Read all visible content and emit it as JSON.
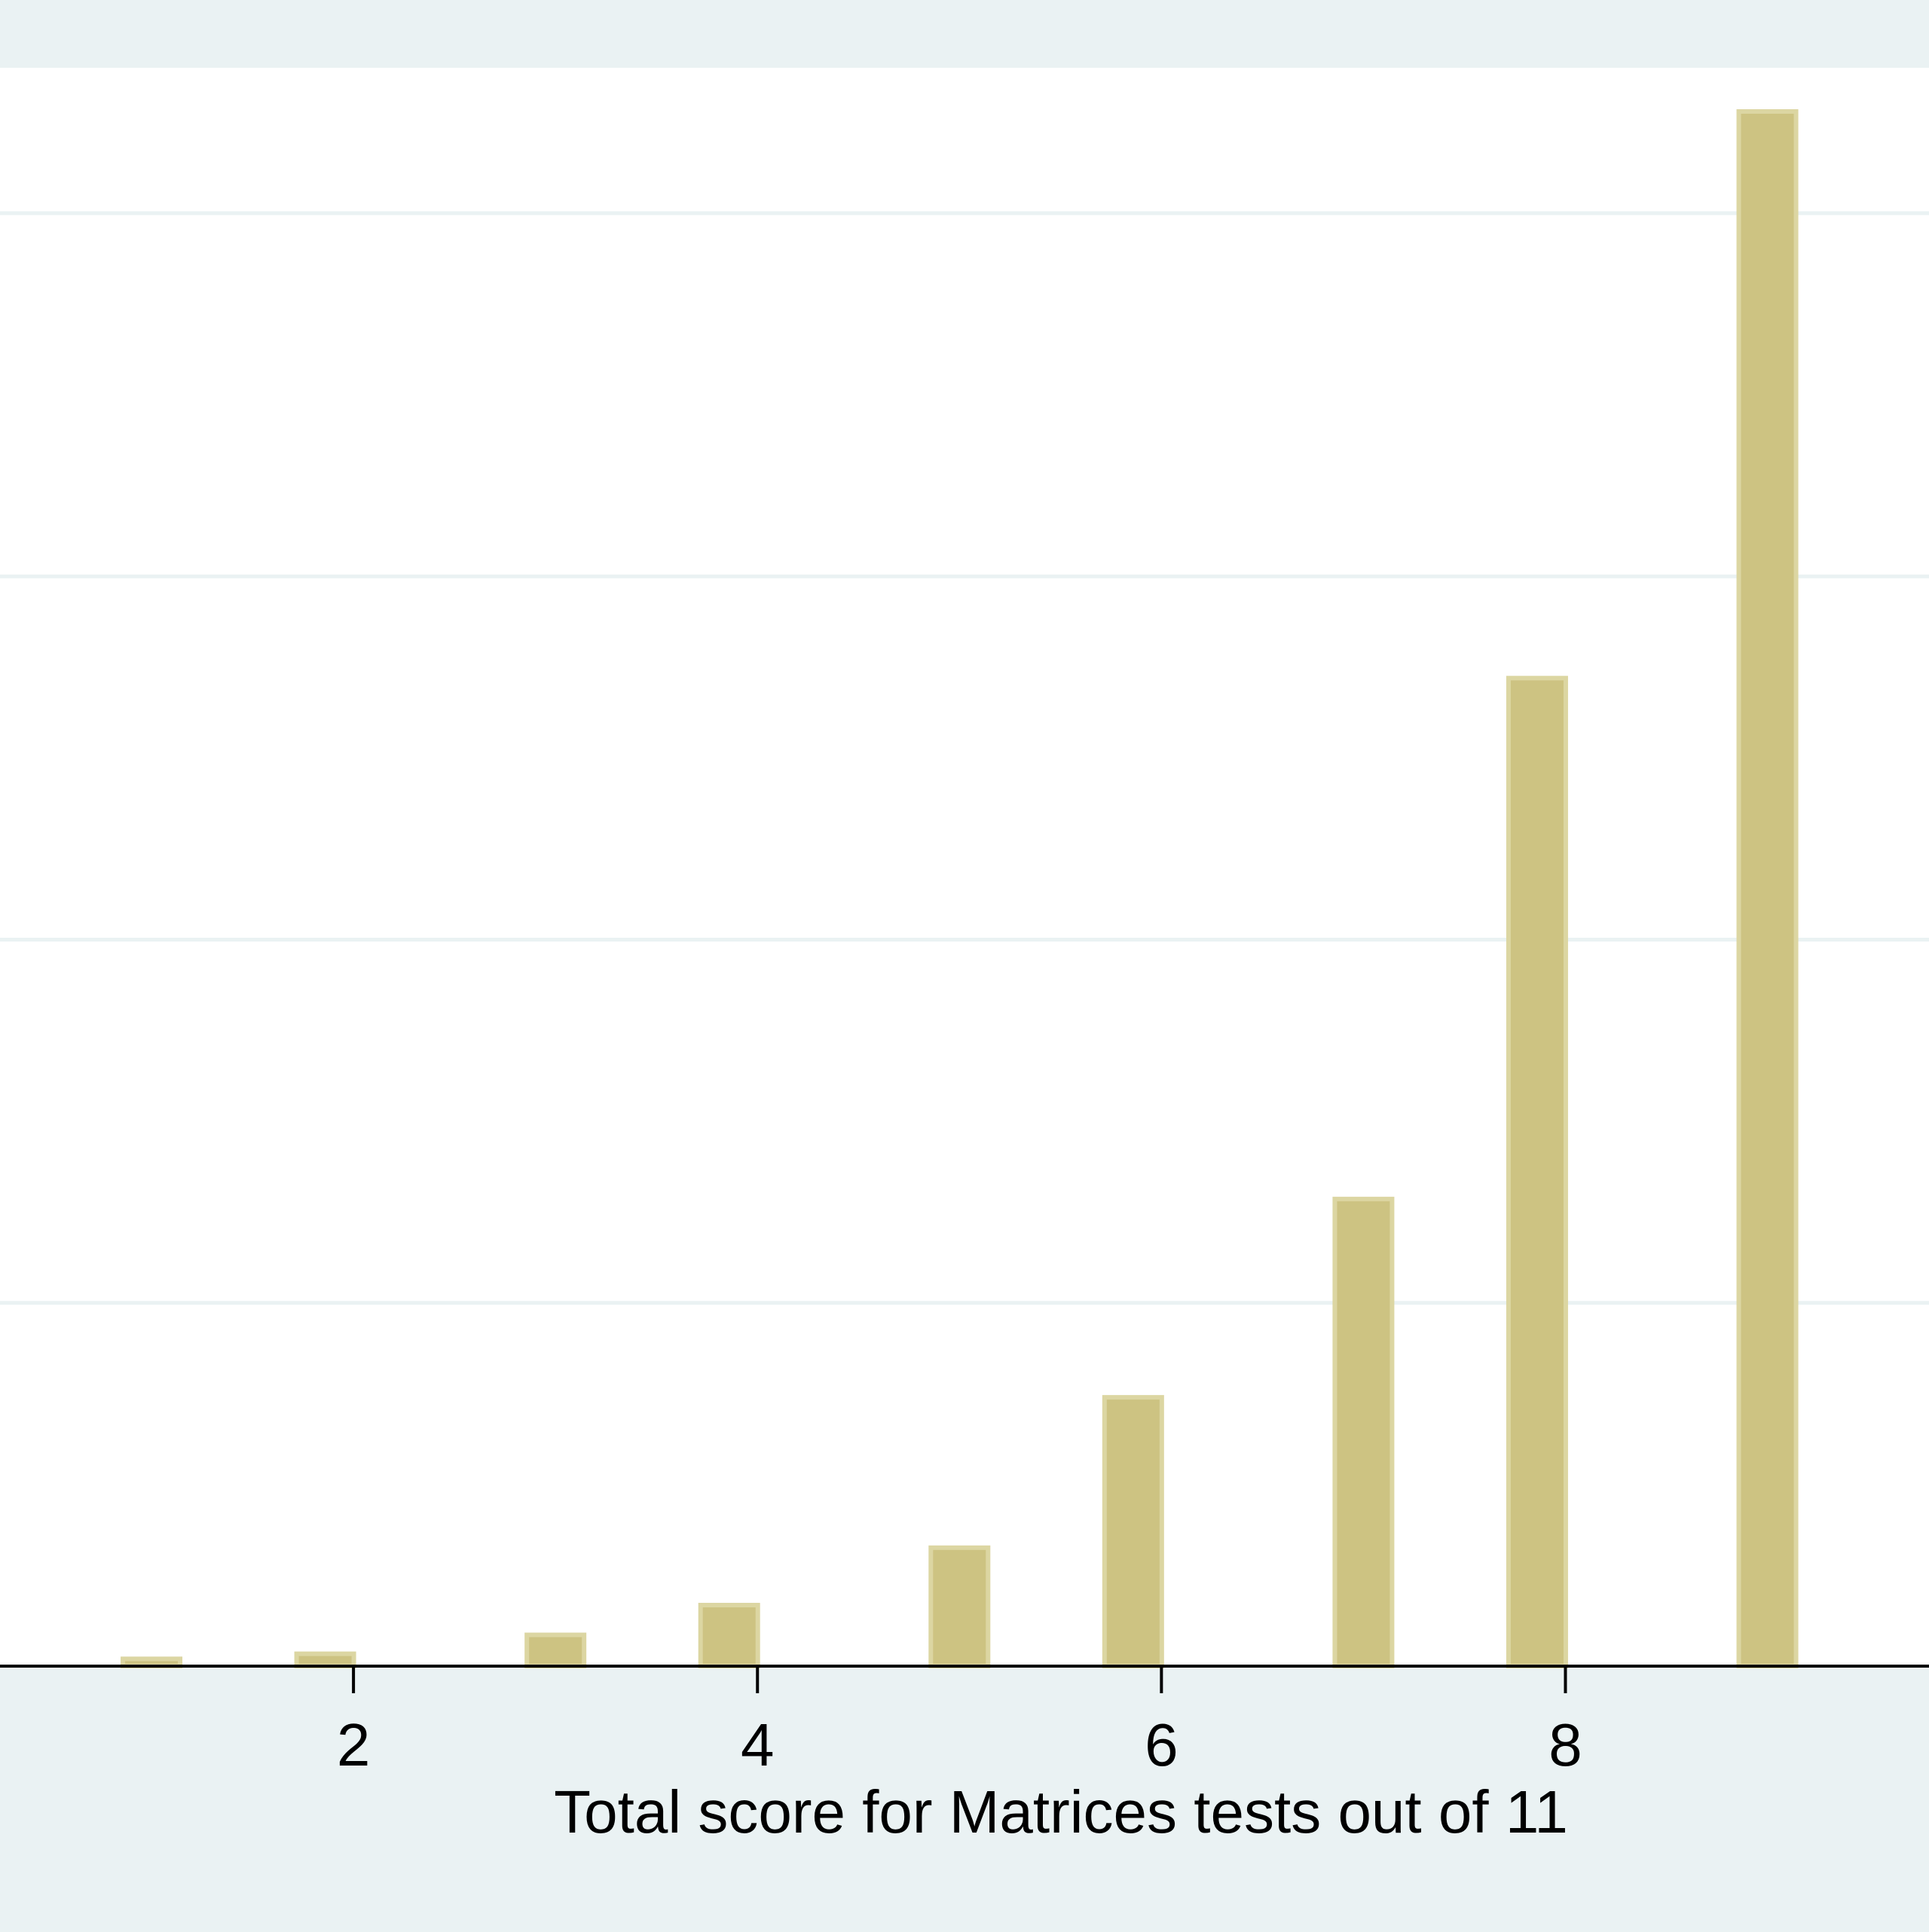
{
  "chart_data": {
    "type": "bar",
    "xlabel": "Total score for Matrices tests out of 11",
    "ylabel": "",
    "x_ticks": [
      2,
      4,
      6,
      8
    ],
    "xlim": [
      0.25,
      9.8
    ],
    "ylim": [
      0,
      21.4
    ],
    "y_gridlines": [
      5,
      10,
      15,
      20
    ],
    "grid": true,
    "x": [
      1.0,
      1.86,
      3.0,
      3.86,
      5.0,
      5.86,
      7.0,
      7.86,
      9.0
    ],
    "values": [
      0.1,
      0.17,
      0.43,
      0.84,
      1.63,
      3.7,
      6.43,
      13.6,
      21.4
    ],
    "colors": {
      "plot_background": "#ffffff",
      "outer_background": "#eaf2f3",
      "gridline": "#eaf2f3",
      "bar_fill": "#cdc382",
      "bar_outline": "#dcd6a2",
      "axis": "#000000"
    }
  }
}
